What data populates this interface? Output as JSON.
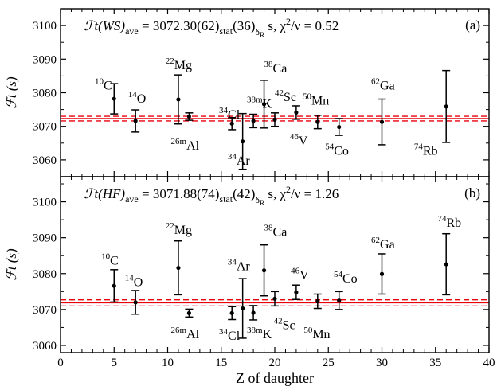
{
  "chart_data": [
    {
      "type": "scatter",
      "panel": "(a)",
      "title": "ℱt(WS)ave = 3072.30(62)stat(36)δR s, χ²/ν = 0.52",
      "title_parts": {
        "main": "ℱt(WS)",
        "sub1": "ave",
        "mid1": " = 3072.30(62)",
        "sub2": "stat",
        "mid2": "(36)",
        "sub3": "δ",
        "sub3b": "R",
        "tail": " s, χ",
        "sup": "2",
        "end": "/ν = 0.52"
      },
      "ylabel": "ℱt (s)",
      "ylim": [
        3055,
        3105
      ],
      "yticks": [
        3060,
        3070,
        3080,
        3090,
        3100
      ],
      "average": {
        "value": 3072.3,
        "band": [
          3071.6,
          3073.0
        ]
      },
      "points": [
        {
          "z": 5,
          "sup": "10",
          "el": "C",
          "y": 3078.2,
          "err": 4.5,
          "lx": 3.2,
          "ly": 3081
        },
        {
          "z": 7,
          "sup": "14",
          "el": "O",
          "y": 3071.6,
          "err": 3.3,
          "lx": 6.3,
          "ly": 3077
        },
        {
          "z": 11,
          "sup": "22",
          "el": "Mg",
          "y": 3078.0,
          "err": 7.3,
          "lx": 9.8,
          "ly": 3087
        },
        {
          "z": 12,
          "sup": "26m",
          "el": "Al",
          "y": 3072.9,
          "err": 1.1,
          "lx": 10.3,
          "ly": 3063
        },
        {
          "z": 16,
          "sup": "34",
          "el": "Cl",
          "y": 3070.8,
          "err": 1.8,
          "lx": 14.8,
          "ly": 3072.3
        },
        {
          "z": 17,
          "sup": "34",
          "el": "Ar",
          "y": 3065.5,
          "err": 8.3,
          "lx": 15.6,
          "ly": 3058.5
        },
        {
          "z": 18,
          "sup": "38m",
          "el": "K",
          "y": 3071.6,
          "err": 2.0,
          "lx": 17.4,
          "ly": 3075.5
        },
        {
          "z": 19,
          "sup": "38",
          "el": "Ca",
          "y": 3076.6,
          "err": 7.1,
          "lx": 19.0,
          "ly": 3086
        },
        {
          "z": 20,
          "sup": "42",
          "el": "Sc",
          "y": 3072.0,
          "err": 2.0,
          "lx": 20.0,
          "ly": 3077.5
        },
        {
          "z": 22,
          "sup": "46",
          "el": "V",
          "y": 3074.1,
          "err": 2.0,
          "lx": 21.4,
          "ly": 3064.5
        },
        {
          "z": 24,
          "sup": "50",
          "el": "Mn",
          "y": 3071.3,
          "err": 2.0,
          "lx": 22.6,
          "ly": 3076.5
        },
        {
          "z": 26,
          "sup": "54",
          "el": "Co",
          "y": 3069.8,
          "err": 2.5,
          "lx": 24.7,
          "ly": 3061.5
        },
        {
          "z": 30,
          "sup": "62",
          "el": "Ga",
          "y": 3071.3,
          "err": 6.8,
          "lx": 29.0,
          "ly": 3081
        },
        {
          "z": 36,
          "sup": "74",
          "el": "Rb",
          "y": 3075.9,
          "err": 10.7,
          "lx": 33.0,
          "ly": 3061.5
        }
      ]
    },
    {
      "type": "scatter",
      "panel": "(b)",
      "title": "ℱt(HF)ave = 3071.88(74)stat(42)δR s, χ²/ν = 1.26",
      "title_parts": {
        "main": "ℱt(HF)",
        "sub1": "ave",
        "mid1": " = 3071.88(74)",
        "sub2": "stat",
        "mid2": "(42)",
        "sub3": "δ",
        "sub3b": "R",
        "tail": " s, χ",
        "sup": "2",
        "end": "/ν = 1.26"
      },
      "ylabel": "ℱt (s)",
      "xlabel": "Z of daughter",
      "xlim": [
        0,
        40
      ],
      "xticks": [
        0,
        5,
        10,
        15,
        20,
        25,
        30,
        35,
        40
      ],
      "ylim": [
        3058,
        3107
      ],
      "yticks": [
        3060,
        3070,
        3080,
        3090,
        3100
      ],
      "average": {
        "value": 3071.9,
        "band": [
          3071.0,
          3072.7
        ]
      },
      "points": [
        {
          "z": 5,
          "sup": "10",
          "el": "C",
          "y": 3076.6,
          "err": 4.5,
          "lx": 3.8,
          "ly": 3082.5
        },
        {
          "z": 7,
          "sup": "14",
          "el": "O",
          "y": 3072.0,
          "err": 3.3,
          "lx": 6.0,
          "ly": 3076.5
        },
        {
          "z": 11,
          "sup": "22",
          "el": "Mg",
          "y": 3081.6,
          "err": 7.5,
          "lx": 9.8,
          "ly": 3091
        },
        {
          "z": 12,
          "sup": "26m",
          "el": "Al",
          "y": 3069.0,
          "err": 1.1,
          "lx": 10.3,
          "ly": 3062
        },
        {
          "z": 16,
          "sup": "34",
          "el": "Cl",
          "y": 3069.0,
          "err": 1.8,
          "lx": 14.8,
          "ly": 3061.5
        },
        {
          "z": 17,
          "sup": "34",
          "el": "Ar",
          "y": 3070.3,
          "err": 8.3,
          "lx": 15.6,
          "ly": 3081
        },
        {
          "z": 18,
          "sup": "38m",
          "el": "K",
          "y": 3069.1,
          "err": 2.0,
          "lx": 17.4,
          "ly": 3062
        },
        {
          "z": 19,
          "sup": "38",
          "el": "Ca",
          "y": 3080.9,
          "err": 7.1,
          "lx": 19.0,
          "ly": 3090.5
        },
        {
          "z": 20,
          "sup": "42",
          "el": "Sc",
          "y": 3073.0,
          "err": 2.0,
          "lx": 19.9,
          "ly": 3064.5
        },
        {
          "z": 22,
          "sup": "46",
          "el": "V",
          "y": 3074.8,
          "err": 2.0,
          "lx": 21.5,
          "ly": 3078.5
        },
        {
          "z": 24,
          "sup": "50",
          "el": "Mn",
          "y": 3072.3,
          "err": 2.0,
          "lx": 22.7,
          "ly": 3062
        },
        {
          "z": 26,
          "sup": "54",
          "el": "Co",
          "y": 3072.5,
          "err": 2.5,
          "lx": 25.5,
          "ly": 3077.5
        },
        {
          "z": 30,
          "sup": "62",
          "el": "Ga",
          "y": 3079.9,
          "err": 5.6,
          "lx": 29.0,
          "ly": 3087
        },
        {
          "z": 36,
          "sup": "74",
          "el": "Rb",
          "y": 3082.6,
          "err": 8.5,
          "lx": 35.2,
          "ly": 3093
        }
      ]
    }
  ],
  "colors": {
    "average_line": "#e8000b",
    "band_lines": "#e8000b",
    "points": "#000000"
  }
}
